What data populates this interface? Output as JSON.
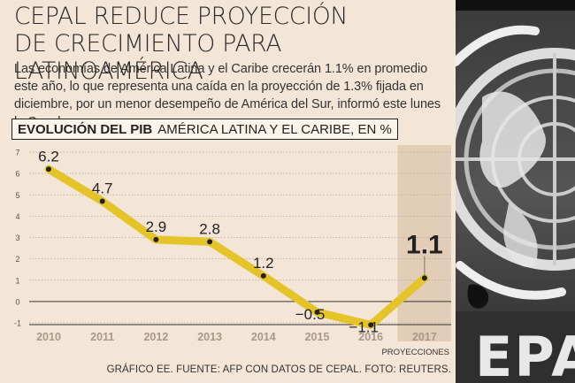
{
  "headline": {
    "title_line1": "CEPAL REDUCE PROYECCIÓN",
    "title_line2": "DE CRECIMIENTO PARA LATINOAMÉRICA",
    "subtitle": "Las economías de América Latina y el Caribe crecerán 1.1% en promedio este año, lo que representa una caída en la proyección de 1.3% fijada en diciembre, por un menor desempeño de América del Sur, informó este lunes la Cepal."
  },
  "chart_heading": {
    "bold": "EVOLUCIÓN DEL PIB",
    "rest": "AMÉRICA LATINA Y EL CARIBE, EN %"
  },
  "chart_data": {
    "type": "line",
    "title": "EVOLUCIÓN DEL PIB AMÉRICA LATINA Y EL CARIBE, EN %",
    "x": [
      "2010",
      "2011",
      "2012",
      "2013",
      "2014",
      "2015",
      "2016",
      "2017"
    ],
    "series": [
      {
        "values": [
          6.2,
          4.7,
          2.9,
          2.8,
          1.2,
          -0.5,
          -1.1,
          1.1
        ]
      }
    ],
    "data_labels": [
      "6.2",
      "4.7",
      "2.9",
      "2.8",
      "1.2",
      "−0.5",
      "−1.1",
      "1.1"
    ],
    "yticks": [
      "7",
      "6",
      "5",
      "4",
      "3",
      "2",
      "1",
      "0",
      "-1"
    ],
    "ylim": [
      -1,
      7
    ],
    "projection_label": "PROYECCIONES",
    "projection_start": "2017",
    "line_color": "#e5c42a",
    "grid": true
  },
  "footer": {
    "credit": "GRÁFICO EE. FUENTE: AFP CON DATOS DE CEPAL. FOTO: REUTERS."
  },
  "photo": {
    "logo_text": "EPA"
  }
}
